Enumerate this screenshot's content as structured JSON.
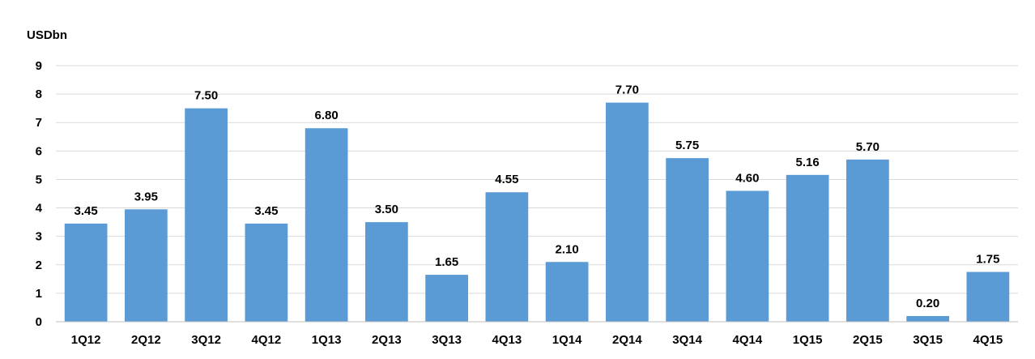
{
  "chart_data": {
    "type": "bar",
    "unit_label": "USDbn",
    "categories": [
      "1Q12",
      "2Q12",
      "3Q12",
      "4Q12",
      "1Q13",
      "2Q13",
      "3Q13",
      "4Q13",
      "1Q14",
      "2Q14",
      "3Q14",
      "4Q14",
      "1Q15",
      "2Q15",
      "3Q15",
      "4Q15"
    ],
    "values": [
      3.45,
      3.95,
      7.5,
      3.45,
      6.8,
      3.5,
      1.65,
      4.55,
      2.1,
      7.7,
      5.75,
      4.6,
      5.16,
      5.7,
      0.2,
      1.75
    ],
    "data_labels": [
      "3.45",
      "3.95",
      "7.50",
      "3.45",
      "6.80",
      "3.50",
      "1.65",
      "4.55",
      "2.10",
      "7.70",
      "5.75",
      "4.60",
      "5.16",
      "5.70",
      "0.20",
      "1.75"
    ],
    "y_ticks": [
      "0",
      "1",
      "2",
      "3",
      "4",
      "5",
      "6",
      "7",
      "8",
      "9"
    ],
    "ylim": [
      0,
      9
    ],
    "grid": true,
    "bar_color": "#5b9bd5"
  }
}
